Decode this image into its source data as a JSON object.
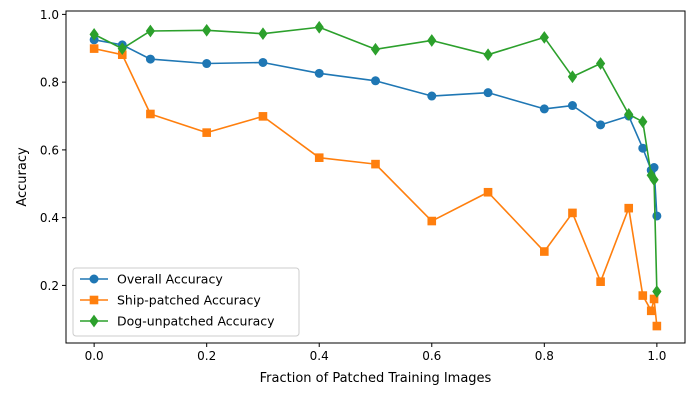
{
  "chart_data": {
    "type": "line",
    "title": "",
    "xlabel": "Fraction of Patched Training Images",
    "ylabel": "Accuracy",
    "xlim": [
      -0.05,
      1.05
    ],
    "ylim": [
      0.03,
      1.01
    ],
    "grid": false,
    "legend_position": "bottom-left",
    "xticks": [
      0.0,
      0.2,
      0.4,
      0.6,
      0.8,
      1.0
    ],
    "xtick_labels": [
      "0.0",
      "0.2",
      "0.4",
      "0.6",
      "0.8",
      "1.0"
    ],
    "yticks": [
      0.2,
      0.4,
      0.6,
      0.8,
      1.0
    ],
    "ytick_labels": [
      "0.2",
      "0.4",
      "0.6",
      "0.8",
      "1.0"
    ],
    "series": [
      {
        "name": "Overall Accuracy",
        "color": "#1f77b4",
        "marker": "circle",
        "x": [
          0.0,
          0.05,
          0.1,
          0.2,
          0.3,
          0.4,
          0.5,
          0.6,
          0.7,
          0.8,
          0.85,
          0.9,
          0.95,
          0.975,
          0.99,
          0.995,
          1.0
        ],
        "y": [
          0.925,
          0.91,
          0.868,
          0.855,
          0.858,
          0.826,
          0.804,
          0.759,
          0.769,
          0.721,
          0.731,
          0.674,
          0.7,
          0.605,
          0.54,
          0.548,
          0.405
        ]
      },
      {
        "name": "Ship-patched Accuracy",
        "color": "#ff7f0e",
        "marker": "square",
        "x": [
          0.0,
          0.05,
          0.1,
          0.2,
          0.3,
          0.4,
          0.5,
          0.6,
          0.7,
          0.8,
          0.85,
          0.9,
          0.95,
          0.975,
          0.99,
          0.995,
          1.0
        ],
        "y": [
          0.899,
          0.881,
          0.706,
          0.651,
          0.699,
          0.577,
          0.558,
          0.39,
          0.475,
          0.3,
          0.414,
          0.211,
          0.428,
          0.17,
          0.125,
          0.16,
          0.08
        ]
      },
      {
        "name": "Dog-unpatched Accuracy",
        "color": "#2ca02c",
        "marker": "diamond",
        "x": [
          0.0,
          0.05,
          0.1,
          0.2,
          0.3,
          0.4,
          0.5,
          0.6,
          0.7,
          0.8,
          0.85,
          0.9,
          0.95,
          0.975,
          0.99,
          0.995,
          1.0
        ],
        "y": [
          0.941,
          0.899,
          0.951,
          0.953,
          0.943,
          0.962,
          0.897,
          0.923,
          0.881,
          0.932,
          0.816,
          0.855,
          0.705,
          0.683,
          0.525,
          0.512,
          0.182
        ]
      }
    ]
  }
}
